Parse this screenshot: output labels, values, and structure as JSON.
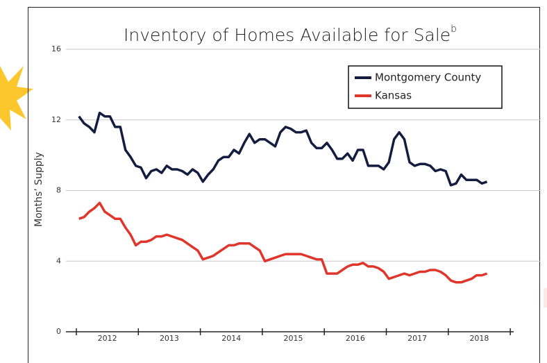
{
  "chart_data": {
    "type": "line",
    "title": "Inventory of Homes Available for Sale",
    "title_superscript": "b",
    "y_label": "Months’ Supply",
    "categories": [
      null,
      null,
      null,
      null,
      null,
      null,
      null,
      null,
      null,
      null,
      null,
      null,
      null,
      null,
      null,
      null,
      null,
      null,
      null,
      null,
      null,
      null,
      null,
      null,
      null,
      null,
      null,
      null,
      null,
      null,
      null,
      null,
      null,
      null,
      null,
      null,
      null,
      null,
      null,
      null,
      null,
      null,
      null,
      null,
      null,
      null,
      null,
      null,
      null,
      null,
      null,
      null,
      null,
      null,
      null,
      null,
      null,
      null,
      null,
      null,
      null,
      null,
      null,
      null,
      null,
      null,
      null,
      null,
      null,
      null,
      null,
      null,
      null,
      null,
      null,
      null,
      null,
      null,
      null,
      null
    ],
    "year_labels": [
      "2012",
      "2013",
      "2014",
      "2015",
      "2016",
      "2017",
      "2018"
    ],
    "ylim": [
      0,
      16
    ],
    "yticks": [
      0,
      4,
      8,
      12,
      16
    ],
    "grid": true,
    "legend": "upper right",
    "series": [
      {
        "name": "Montgomery County",
        "color": "#141c40",
        "values": [
          12.2,
          11.8,
          11.6,
          11.3,
          12.4,
          12.2,
          12.2,
          11.6,
          11.6,
          10.3,
          9.9,
          9.4,
          9.3,
          8.7,
          9.1,
          9.2,
          9.0,
          9.4,
          9.2,
          9.2,
          9.1,
          8.9,
          9.2,
          9.0,
          8.5,
          8.9,
          9.2,
          9.7,
          9.9,
          9.9,
          10.3,
          10.1,
          10.7,
          11.2,
          10.7,
          10.9,
          10.9,
          10.7,
          10.5,
          11.3,
          11.6,
          11.5,
          11.3,
          11.3,
          11.4,
          10.7,
          10.4,
          10.4,
          10.7,
          10.3,
          9.8,
          9.8,
          10.1,
          9.7,
          10.3,
          10.3,
          9.4,
          9.4,
          9.4,
          9.2,
          9.6,
          10.9,
          11.3,
          10.9,
          9.6,
          9.4,
          9.5,
          9.5,
          9.4,
          9.1,
          9.2,
          9.1,
          8.3,
          8.4,
          8.9,
          8.6,
          8.6,
          8.6,
          8.4,
          8.5
        ]
      },
      {
        "name": "Kansas",
        "color": "#e0352b",
        "values": [
          6.4,
          6.5,
          6.8,
          7.0,
          7.3,
          6.8,
          6.6,
          6.4,
          6.4,
          5.9,
          5.5,
          4.9,
          5.1,
          5.1,
          5.2,
          5.4,
          5.4,
          5.5,
          5.4,
          5.3,
          5.2,
          5.0,
          4.8,
          4.6,
          4.1,
          4.2,
          4.3,
          4.5,
          4.7,
          4.9,
          4.9,
          5.0,
          5.0,
          5.0,
          4.8,
          4.6,
          4.0,
          4.1,
          4.2,
          4.3,
          4.4,
          4.4,
          4.4,
          4.4,
          4.3,
          4.2,
          4.1,
          4.1,
          3.3,
          3.3,
          3.3,
          3.5,
          3.7,
          3.8,
          3.8,
          3.9,
          3.7,
          3.7,
          3.6,
          3.4,
          3.0,
          3.1,
          3.2,
          3.3,
          3.2,
          3.3,
          3.4,
          3.4,
          3.5,
          3.5,
          3.4,
          3.2,
          2.9,
          2.8,
          2.8,
          2.9,
          3.0,
          3.2,
          3.2,
          3.3
        ]
      }
    ]
  }
}
